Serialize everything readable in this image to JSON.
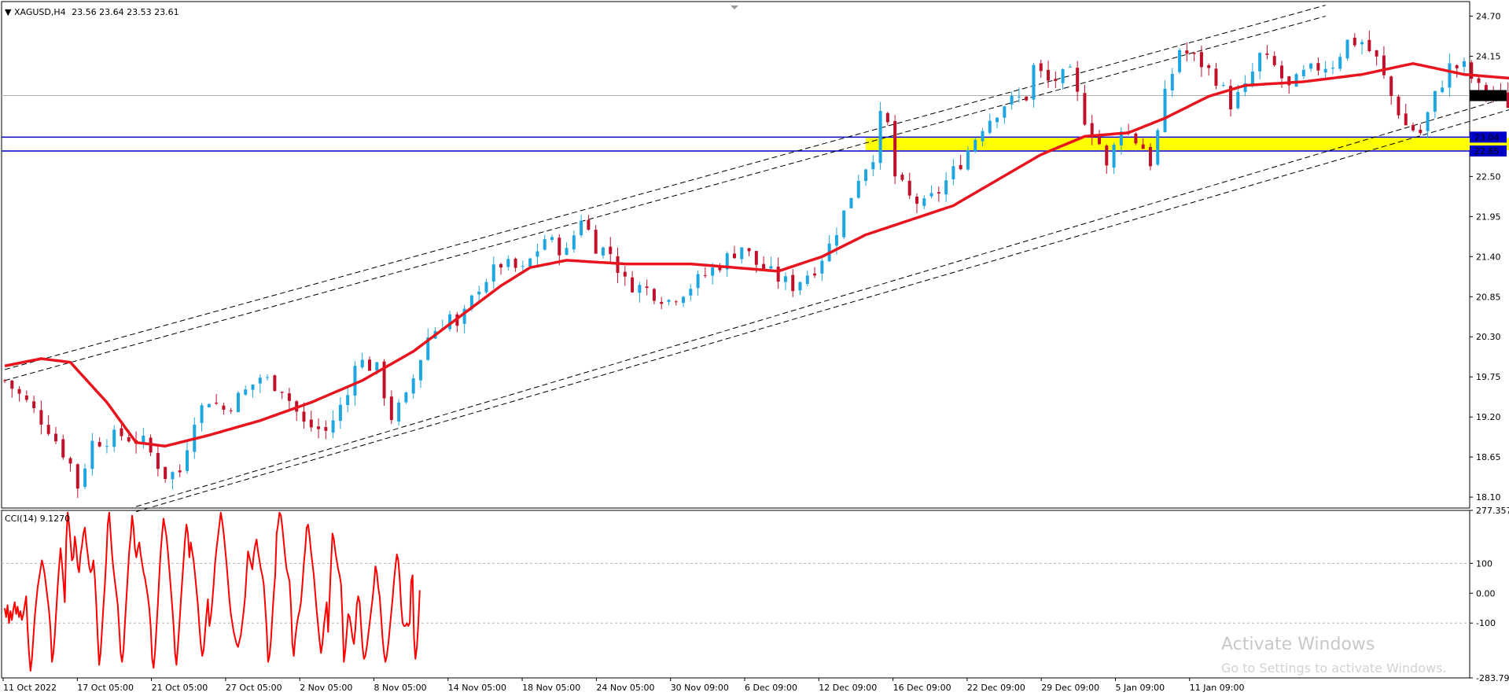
{
  "header": {
    "arrow": "▼",
    "symbol": "XAGUSD,H4",
    "ohlc": "23.56 23.64 23.53 23.61"
  },
  "cci_header": {
    "label": "CCI(14) 9.1270"
  },
  "watermark": {
    "line1": "Activate Windows",
    "line2": "Go to Settings to activate Windows."
  },
  "colors": {
    "bull": "#1ea6e0",
    "bear": "#c0102a",
    "ma": "#e8141e",
    "cci": "#ff0000",
    "support_zone": "#ffff00",
    "support_line": "#0000c8",
    "channel": "#000000"
  },
  "chart_data": [
    {
      "type": "candlestick",
      "title": "XAGUSD,H4",
      "ylim": [
        17.95,
        24.9
      ],
      "y_ticks": [
        "24.70",
        "24.15",
        "23.60",
        "23.05",
        "22.50",
        "21.95",
        "21.40",
        "20.85",
        "20.30",
        "19.75",
        "19.20",
        "18.65",
        "18.10"
      ],
      "x_ticks": [
        "11 Oct 2022",
        "17 Oct 05:00",
        "21 Oct 05:00",
        "27 Oct 05:00",
        "2 Nov 05:00",
        "8 Nov 05:00",
        "14 Nov 05:00",
        "18 Nov 05:00",
        "24 Nov 05:00",
        "30 Nov 09:00",
        "6 Dec 09:00",
        "12 Dec 09:00",
        "16 Dec 09:00",
        "22 Dec 09:00",
        "29 Dec 09:00",
        "5 Jan 09:00",
        "11 Jan 09:00"
      ],
      "last_price": "23.61",
      "price_levels": [
        "23.04",
        "22.85"
      ],
      "close_path": [
        [
          0,
          19.7
        ],
        [
          3,
          19.4
        ],
        [
          6,
          19.05
        ],
        [
          9,
          18.55
        ],
        [
          10,
          18.25
        ],
        [
          12,
          18.85
        ],
        [
          16,
          18.95
        ],
        [
          19,
          18.85
        ],
        [
          22,
          18.4
        ],
        [
          24,
          18.45
        ],
        [
          26,
          19.2
        ],
        [
          28,
          19.45
        ],
        [
          30,
          19.3
        ],
        [
          33,
          19.55
        ],
        [
          35,
          19.75
        ],
        [
          38,
          19.6
        ],
        [
          41,
          19.1
        ],
        [
          44,
          19.0
        ],
        [
          47,
          19.5
        ],
        [
          48,
          20.0
        ],
        [
          51,
          19.85
        ],
        [
          53,
          19.2
        ],
        [
          55,
          19.45
        ],
        [
          58,
          20.3
        ],
        [
          61,
          20.6
        ],
        [
          62,
          20.4
        ],
        [
          65,
          21.0
        ],
        [
          68,
          21.3
        ],
        [
          71,
          21.2
        ],
        [
          74,
          21.65
        ],
        [
          77,
          21.45
        ],
        [
          79,
          21.95
        ],
        [
          81,
          21.55
        ],
        [
          83,
          21.45
        ],
        [
          85,
          21.05
        ],
        [
          88,
          20.95
        ],
        [
          91,
          20.8
        ],
        [
          94,
          21.0
        ],
        [
          98,
          21.3
        ],
        [
          101,
          21.55
        ],
        [
          103,
          21.3
        ],
        [
          106,
          21.1
        ],
        [
          108,
          21.0
        ],
        [
          111,
          21.25
        ],
        [
          113,
          21.55
        ],
        [
          115,
          22.0
        ],
        [
          117,
          22.5
        ],
        [
          119,
          22.8
        ],
        [
          120,
          23.3
        ],
        [
          121,
          23.2
        ],
        [
          122,
          22.5
        ],
        [
          124,
          22.2
        ],
        [
          126,
          22.1
        ],
        [
          128,
          22.3
        ],
        [
          131,
          22.7
        ],
        [
          134,
          23.2
        ],
        [
          137,
          23.5
        ],
        [
          140,
          23.6
        ],
        [
          141,
          24.0
        ],
        [
          143,
          23.8
        ],
        [
          146,
          23.9
        ],
        [
          148,
          23.3
        ],
        [
          150,
          22.95
        ],
        [
          151,
          22.6
        ],
        [
          153,
          23.2
        ],
        [
          156,
          22.9
        ],
        [
          157,
          22.7
        ],
        [
          158,
          23.1
        ],
        [
          159,
          23.6
        ],
        [
          161,
          24.25
        ],
        [
          164,
          24.05
        ],
        [
          166,
          23.85
        ],
        [
          168,
          23.5
        ],
        [
          170,
          23.7
        ],
        [
          172,
          24.15
        ],
        [
          174,
          24.0
        ],
        [
          176,
          23.7
        ],
        [
          178,
          23.9
        ],
        [
          180,
          24.0
        ],
        [
          182,
          24.05
        ],
        [
          184,
          24.35
        ],
        [
          186,
          24.35
        ],
        [
          188,
          24.1
        ],
        [
          190,
          23.6
        ],
        [
          192,
          23.2
        ],
        [
          194,
          23.1
        ],
        [
          196,
          23.6
        ],
        [
          198,
          24.0
        ],
        [
          200,
          24.0
        ],
        [
          202,
          23.7
        ],
        [
          204,
          23.65
        ],
        [
          206,
          23.5
        ],
        [
          208,
          23.8
        ],
        [
          210,
          23.61
        ]
      ],
      "moving_average_path": [
        [
          0,
          19.9
        ],
        [
          5,
          20.0
        ],
        [
          9,
          19.95
        ],
        [
          14,
          19.4
        ],
        [
          18,
          18.85
        ],
        [
          22,
          18.8
        ],
        [
          28,
          18.95
        ],
        [
          35,
          19.15
        ],
        [
          42,
          19.4
        ],
        [
          49,
          19.7
        ],
        [
          56,
          20.1
        ],
        [
          62,
          20.55
        ],
        [
          68,
          21.0
        ],
        [
          72,
          21.25
        ],
        [
          77,
          21.35
        ],
        [
          85,
          21.3
        ],
        [
          94,
          21.3
        ],
        [
          100,
          21.25
        ],
        [
          106,
          21.2
        ],
        [
          112,
          21.4
        ],
        [
          118,
          21.7
        ],
        [
          124,
          21.9
        ],
        [
          130,
          22.1
        ],
        [
          136,
          22.45
        ],
        [
          142,
          22.8
        ],
        [
          148,
          23.05
        ],
        [
          154,
          23.1
        ],
        [
          159,
          23.3
        ],
        [
          165,
          23.6
        ],
        [
          170,
          23.75
        ],
        [
          178,
          23.8
        ],
        [
          186,
          23.9
        ],
        [
          193,
          24.05
        ],
        [
          200,
          23.9
        ],
        [
          206,
          23.85
        ],
        [
          212,
          23.8
        ],
        [
          214,
          23.8
        ]
      ],
      "channel_lines": [
        [
          [
            0,
            19.85
          ],
          [
            181,
            24.85
          ]
        ],
        [
          [
            0,
            19.7
          ],
          [
            181,
            24.7
          ]
        ],
        [
          [
            18,
            17.97
          ],
          [
            250,
            24.9
          ]
        ],
        [
          [
            18,
            17.9
          ],
          [
            250,
            24.7
          ]
        ]
      ],
      "support_zone": [
        22.85,
        23.04
      ]
    },
    {
      "type": "line",
      "title": "CCI(14) 9.1270",
      "ylim": [
        -283.796,
        277.357
      ],
      "y_ticks": [
        "277.357",
        "100",
        "0.00",
        "-100",
        "-283.796"
      ],
      "levels": [
        100,
        -100
      ],
      "values": [
        -50,
        -80,
        -40,
        -100,
        -60,
        -90,
        -55,
        -30,
        -70,
        -45,
        -80,
        -60,
        -90,
        -70,
        -40,
        -10,
        -120,
        -200,
        -260,
        -220,
        -150,
        -80,
        -30,
        20,
        50,
        80,
        110,
        90,
        60,
        20,
        -20,
        -60,
        -120,
        -230,
        -200,
        -140,
        -60,
        20,
        90,
        150,
        100,
        40,
        -30,
        180,
        270,
        230,
        170,
        110,
        120,
        190,
        150,
        90,
        70,
        130,
        160,
        200,
        220,
        170,
        130,
        90,
        70,
        80,
        110,
        50,
        -40,
        -150,
        -240,
        -200,
        -120,
        -40,
        30,
        120,
        230,
        270,
        200,
        130,
        80,
        40,
        0,
        -40,
        -120,
        -200,
        -230,
        -190,
        -100,
        -20,
        60,
        140,
        190,
        260,
        220,
        150,
        120,
        150,
        170,
        130,
        100,
        70,
        50,
        20,
        -10,
        -50,
        -110,
        -220,
        -250,
        -200,
        -120,
        -40,
        60,
        140,
        200,
        250,
        220,
        190,
        140,
        80,
        20,
        -40,
        -110,
        -200,
        -240,
        -180,
        -110,
        -30,
        40,
        110,
        180,
        230,
        200,
        120,
        170,
        140,
        110,
        60,
        10,
        -40,
        -110,
        -170,
        -210,
        -190,
        -130,
        -70,
        -20,
        -110,
        -80,
        -30,
        30,
        100,
        150,
        190,
        230,
        270,
        240,
        200,
        150,
        100,
        40,
        -20,
        -70,
        -100,
        -130,
        -150,
        -170,
        -180,
        -160,
        -140,
        -100,
        -60,
        -10,
        70,
        140,
        120,
        100,
        80,
        130,
        160,
        180,
        140,
        110,
        80,
        60,
        30,
        -40,
        -120,
        -230,
        -210,
        -160,
        -80,
        0,
        60,
        200,
        230,
        270,
        260,
        220,
        170,
        120,
        80,
        60,
        40,
        -40,
        -170,
        -210,
        -150,
        -110,
        -80,
        -60,
        -30,
        30,
        100,
        150,
        220,
        230,
        190,
        140,
        100,
        60,
        0,
        -60,
        -110,
        -160,
        -200,
        -170,
        -110,
        -70,
        -30,
        -130,
        -20,
        100,
        200,
        180,
        140,
        110,
        80,
        60,
        30,
        -80,
        -230,
        -190,
        -130,
        -70,
        -80,
        -110,
        -150,
        -170,
        -120,
        -40,
        -10,
        -30,
        -110,
        -180,
        -220,
        -210,
        -180,
        -140,
        -100,
        -60,
        -20,
        30,
        90,
        70,
        20,
        -10,
        -80,
        -150,
        -200,
        -230,
        -210,
        -170,
        -120,
        -70,
        -20,
        40,
        90,
        130,
        110,
        50,
        -40,
        -100,
        -110,
        -110,
        -100,
        -110,
        -100,
        40,
        60,
        -150,
        -220,
        -180,
        -100,
        10
      ]
    }
  ]
}
